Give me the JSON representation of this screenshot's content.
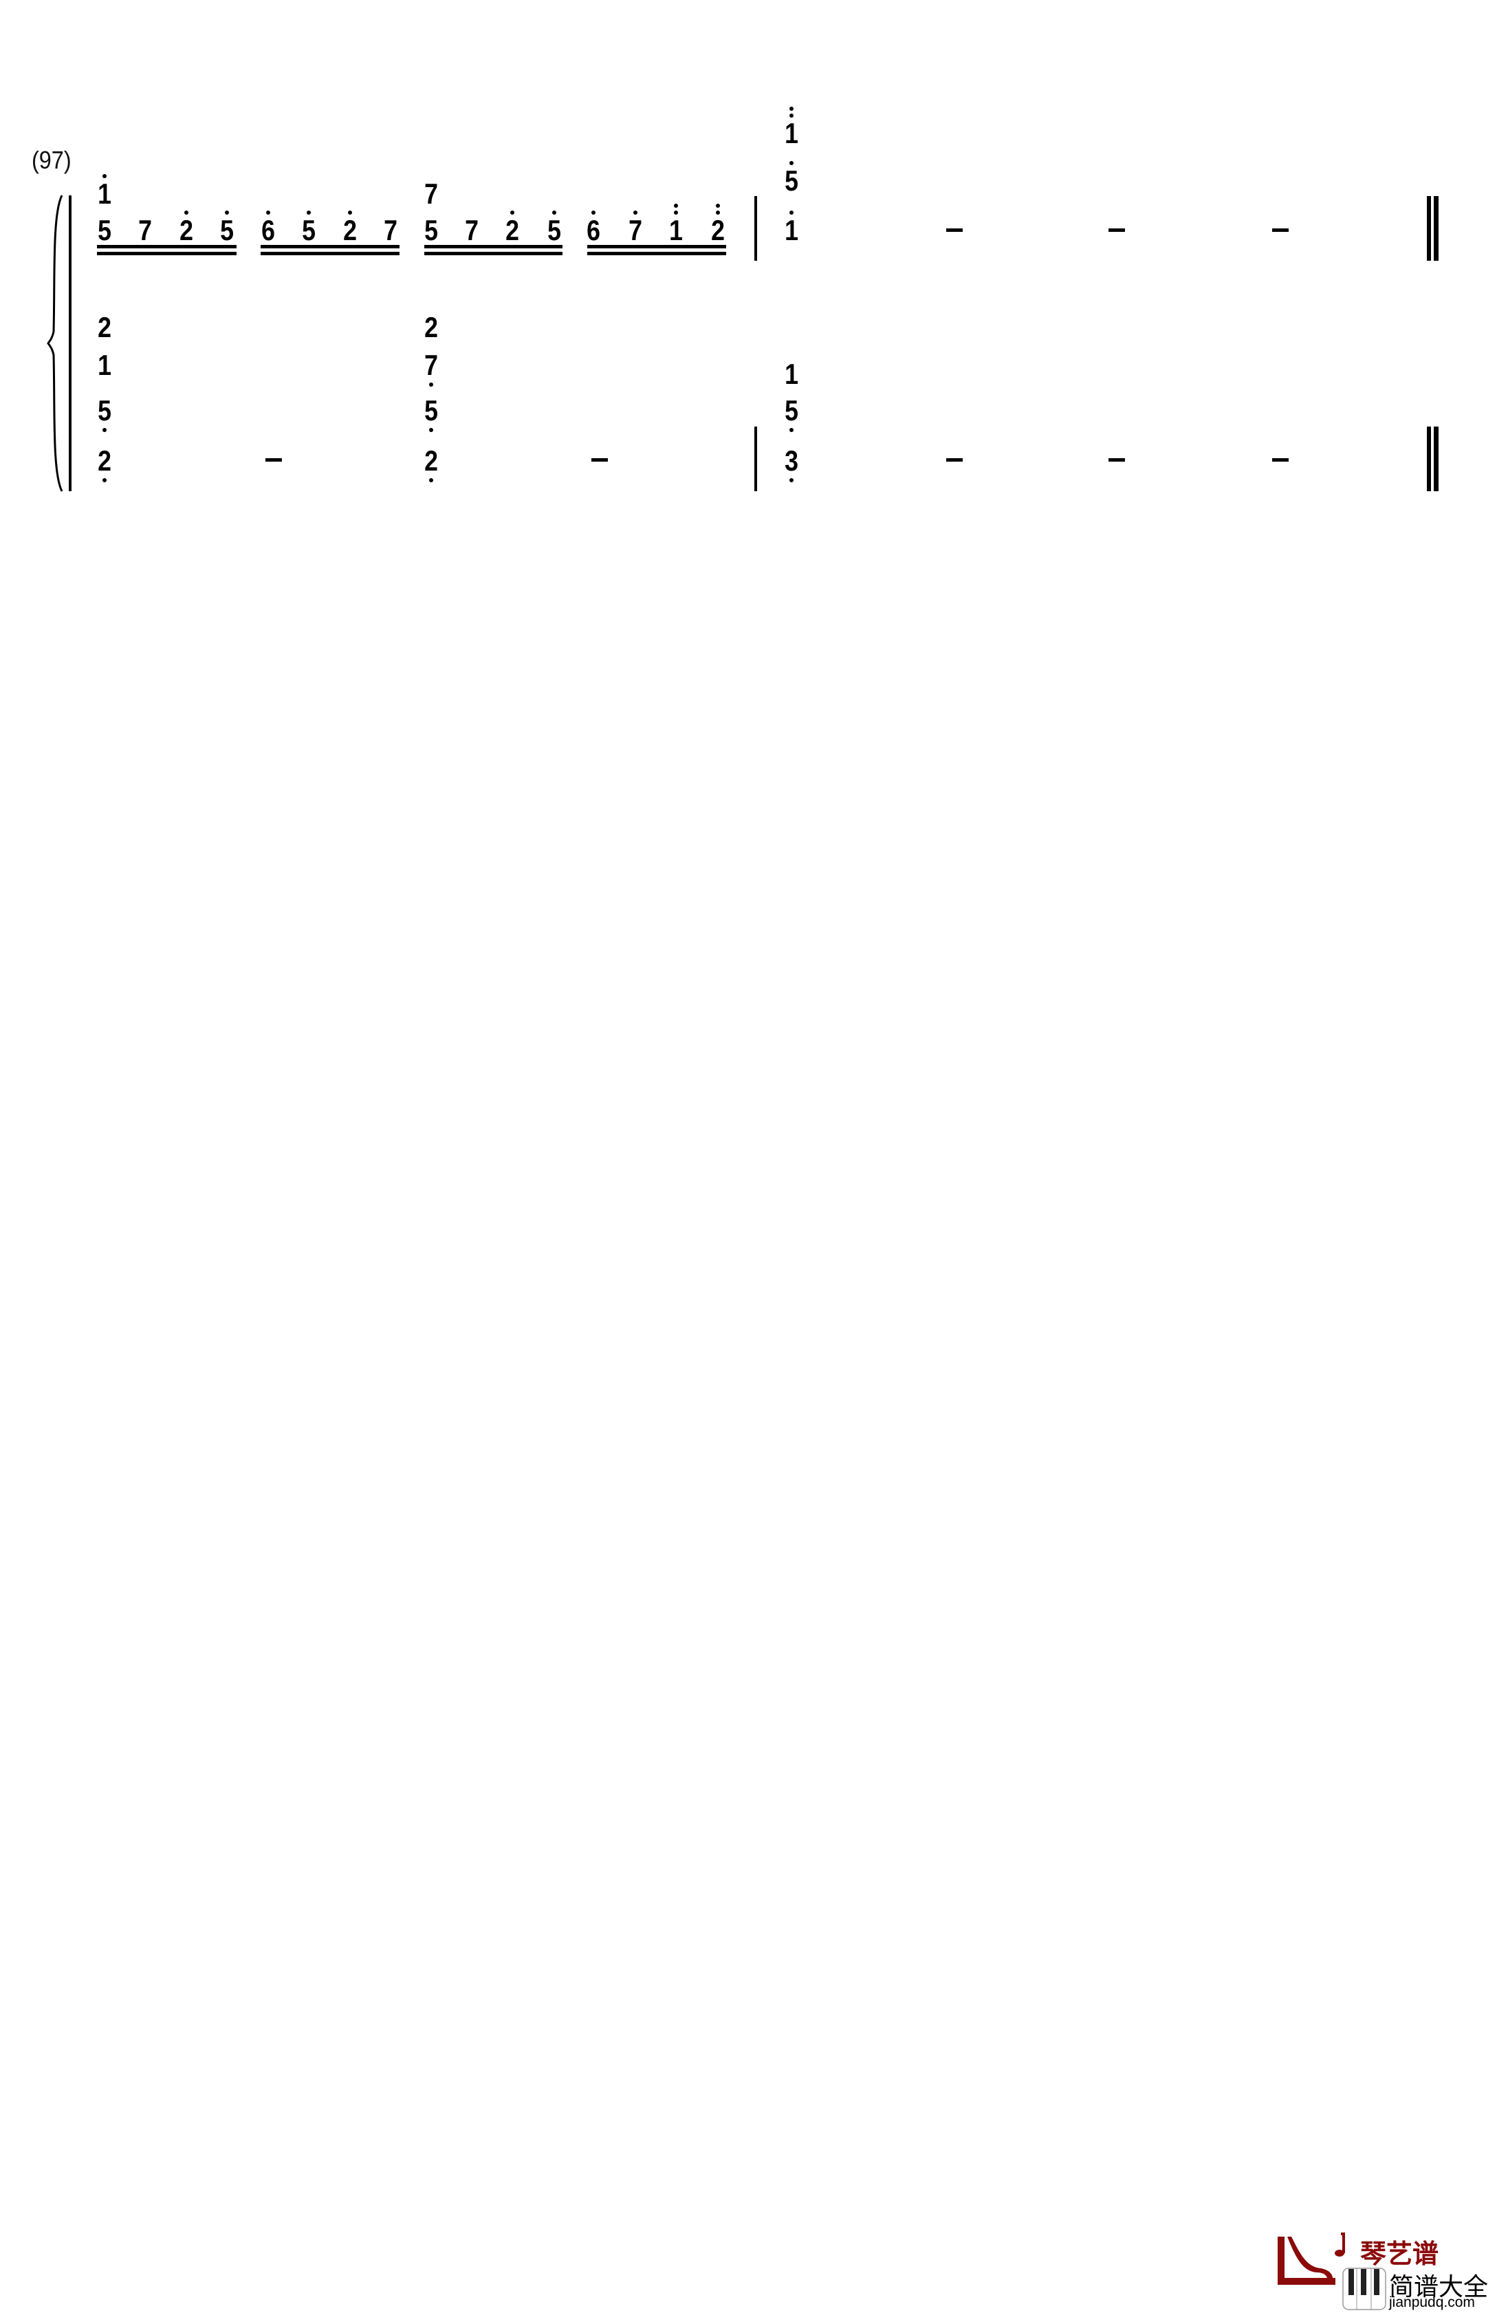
{
  "score": {
    "measure_number": "(97)",
    "upper_staff": {
      "measure_1": {
        "beats": [
          [
            {
              "d": "5",
              "oct": 0
            },
            {
              "d": "7",
              "oct": 0
            },
            {
              "d": "2",
              "oct": 1
            },
            {
              "d": "5",
              "oct": 1
            }
          ],
          [
            {
              "d": "6",
              "oct": 1
            },
            {
              "d": "5",
              "oct": 1
            },
            {
              "d": "2",
              "oct": 1
            },
            {
              "d": "7",
              "oct": 0
            }
          ],
          [
            {
              "d": "5",
              "oct": 0
            },
            {
              "d": "7",
              "oct": 0
            },
            {
              "d": "2",
              "oct": 1
            },
            {
              "d": "5",
              "oct": 1
            }
          ],
          [
            {
              "d": "6",
              "oct": 1
            },
            {
              "d": "7",
              "oct": 1
            },
            {
              "d": "1",
              "oct": 2
            },
            {
              "d": "2",
              "oct": 2
            }
          ]
        ],
        "underline_count": 2,
        "chord_tops": [
          {
            "d": "1",
            "oct": 1,
            "beat": 0
          },
          {
            "d": "7",
            "oct": 0,
            "beat": 2
          }
        ]
      },
      "measure_2": {
        "chord": [
          {
            "d": "1",
            "oct": 2
          },
          {
            "d": "5",
            "oct": 1
          },
          {
            "d": "1",
            "oct": 1
          }
        ],
        "dashes": [
          "–",
          "–",
          "–"
        ]
      }
    },
    "lower_staff": {
      "measure_1": {
        "chords": [
          [
            {
              "d": "2",
              "oct": 0
            },
            {
              "d": "1",
              "oct": 0
            },
            {
              "d": "5",
              "oct": -1
            },
            {
              "d": "2",
              "oct": -1
            }
          ],
          [
            {
              "d": "2",
              "oct": 0
            },
            {
              "d": "7",
              "oct": -1
            },
            {
              "d": "5",
              "oct": -1
            },
            {
              "d": "2",
              "oct": -1
            }
          ]
        ],
        "dashes": [
          "–",
          "–"
        ]
      },
      "measure_2": {
        "chord": [
          {
            "d": "1",
            "oct": 0
          },
          {
            "d": "5",
            "oct": -1
          },
          {
            "d": "3",
            "oct": -1
          }
        ],
        "dashes": [
          "–",
          "–",
          "–"
        ]
      }
    }
  },
  "footer_logo": {
    "brand_cn": "琴艺谱",
    "subtitle_cn": "简谱大全",
    "domain": "jianpudq.com",
    "brand_color": "#8b0a0a"
  }
}
